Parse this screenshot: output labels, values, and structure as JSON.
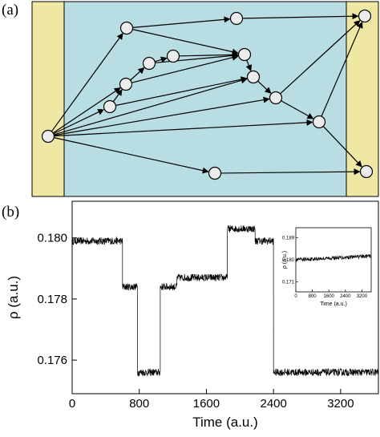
{
  "panel_a": {
    "label": "(a)",
    "colors": {
      "edge_band": "#efe8a4",
      "center": "#b8dde3",
      "node_fill": "#ececec",
      "stroke": "#000000"
    },
    "nodes": [
      {
        "id": "src"
      },
      {
        "id": "n1"
      },
      {
        "id": "n2"
      },
      {
        "id": "n3"
      },
      {
        "id": "n4"
      },
      {
        "id": "n5"
      },
      {
        "id": "n6"
      },
      {
        "id": "n7"
      },
      {
        "id": "n8"
      },
      {
        "id": "n9"
      },
      {
        "id": "n10"
      },
      {
        "id": "n11"
      },
      {
        "id": "n12"
      },
      {
        "id": "sink-top"
      },
      {
        "id": "sink-bottom"
      }
    ],
    "edges": [
      [
        "src",
        "n1"
      ],
      [
        "src",
        "n4"
      ],
      [
        "src",
        "n8"
      ],
      [
        "src",
        "n9"
      ],
      [
        "src",
        "n10"
      ],
      [
        "src",
        "n11"
      ],
      [
        "src",
        "n12"
      ],
      [
        "n1",
        "n2"
      ],
      [
        "n1",
        "n6"
      ],
      [
        "n2",
        "sink-top"
      ],
      [
        "n4",
        "n5"
      ],
      [
        "n4",
        "n7"
      ],
      [
        "n4",
        "n8"
      ],
      [
        "n5",
        "n3"
      ],
      [
        "n3",
        "n14"
      ],
      [
        "n14",
        "n6"
      ],
      [
        "n5",
        "n6"
      ],
      [
        "n6",
        "n7"
      ],
      [
        "n7",
        "n9"
      ],
      [
        "n9",
        "n10"
      ],
      [
        "n9",
        "sink-top"
      ],
      [
        "n10",
        "sink-top"
      ],
      [
        "n10",
        "sink-bottom"
      ],
      [
        "n12",
        "sink-bottom"
      ]
    ]
  },
  "panel_b": {
    "label": "(b)",
    "chart_data": [
      {
        "type": "line",
        "title": "",
        "xlabel": "Time (a.u.)",
        "ylabel": "ρ (a.u.)",
        "xlim": [
          0,
          3650
        ],
        "ylim": [
          0.1749,
          0.1812
        ],
        "xticks": [
          0,
          800,
          1600,
          2400,
          3200
        ],
        "yticks": [
          0.176,
          0.178,
          0.18
        ],
        "ytick_labels": [
          "0.176",
          "0.178",
          "0.180"
        ],
        "grid": false,
        "noise_amplitude": 0.00012,
        "segments": [
          {
            "x": [
              0,
              600
            ],
            "y": 0.1799
          },
          {
            "x": [
              600,
              700
            ],
            "y": 0.1784
          },
          {
            "x": [
              700,
              780
            ],
            "y": 0.1784
          },
          {
            "x": [
              780,
              1050
            ],
            "y": 0.1756
          },
          {
            "x": [
              1050,
              1250
            ],
            "y": 0.1784
          },
          {
            "x": [
              1250,
              1850
            ],
            "y": 0.1787
          },
          {
            "x": [
              1850,
              2180
            ],
            "y": 0.1803
          },
          {
            "x": [
              2180,
              2400
            ],
            "y": 0.1799
          },
          {
            "x": [
              2400,
              3650
            ],
            "y": 0.1756
          }
        ]
      },
      {
        "type": "line",
        "title": "",
        "xlabel": "Time (a.u.)",
        "ylabel": "ρ (a.u.)",
        "xlim": [
          0,
          3650
        ],
        "ylim": [
          0.167,
          0.193
        ],
        "xticks": [
          0,
          800,
          1600,
          2400,
          3200
        ],
        "yticks": [
          0.171,
          0.18,
          0.189
        ],
        "ytick_labels": [
          "0.171",
          "0.180",
          "0.189"
        ],
        "grid": false,
        "noise_amplitude": 0.0008,
        "trend": {
          "x": [
            0,
            3650
          ],
          "y": [
            0.18,
            0.1815
          ]
        }
      }
    ]
  }
}
